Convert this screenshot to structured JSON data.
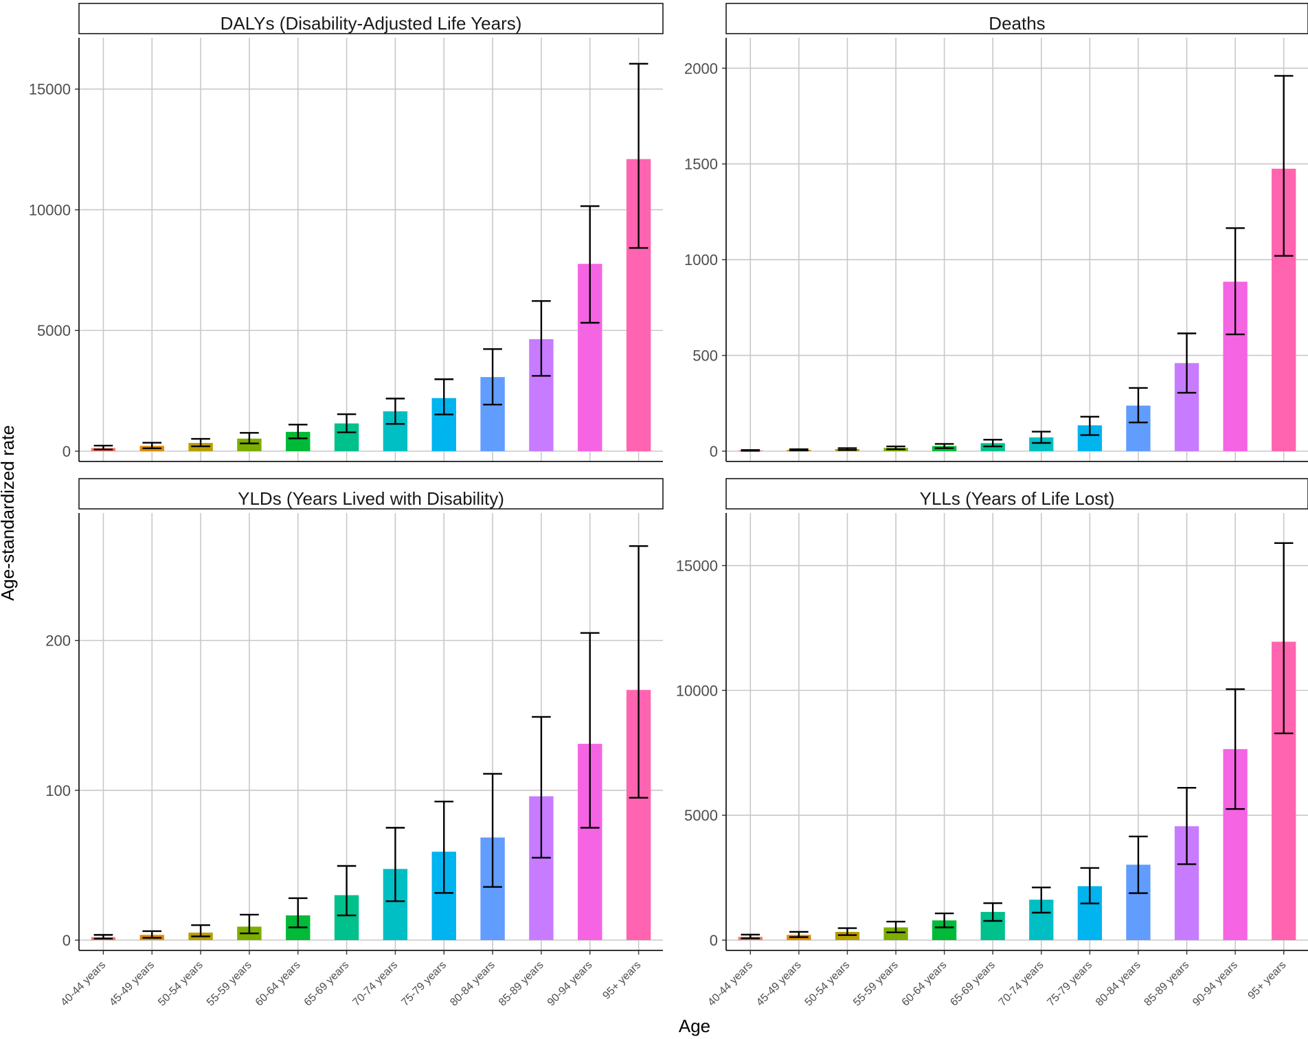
{
  "chart_data": {
    "type": "bar",
    "x_axis_title": "Age",
    "y_axis_title": "Age-standardized rate",
    "categories": [
      "40-44 years",
      "45-49 years",
      "50-54 years",
      "55-59 years",
      "60-64 years",
      "65-69 years",
      "70-74 years",
      "75-79 years",
      "80-84 years",
      "85-89 years",
      "90-94 years",
      "95+ years"
    ],
    "colors": [
      "#F8766D",
      "#DE8C00",
      "#B79F00",
      "#7CAE00",
      "#00BA38",
      "#00C08B",
      "#00BFC4",
      "#00B4F0",
      "#619CFF",
      "#C77CFF",
      "#F564E3",
      "#FF64B0"
    ],
    "panels": [
      {
        "title": "DALYs (Disability-Adjusted Life Years)",
        "ylim": [
          0,
          16500
        ],
        "yticks": [
          0,
          5000,
          10000,
          15000
        ],
        "values": [
          130,
          220,
          340,
          520,
          800,
          1150,
          1650,
          2200,
          3070,
          4640,
          7760,
          12100
        ],
        "lower": [
          70,
          120,
          200,
          320,
          530,
          780,
          1130,
          1520,
          1930,
          3120,
          5320,
          8420
        ],
        "upper": [
          230,
          350,
          510,
          760,
          1100,
          1530,
          2180,
          2980,
          4230,
          6220,
          10150,
          16050
        ]
      },
      {
        "title": "Deaths",
        "ylim": [
          0,
          2080
        ],
        "yticks": [
          0,
          500,
          1000,
          1500,
          2000
        ],
        "values": [
          4,
          7,
          11,
          17,
          27,
          42,
          72,
          135,
          238,
          460,
          885,
          1475
        ],
        "lower": [
          2,
          4,
          6,
          10,
          16,
          25,
          43,
          84,
          150,
          305,
          610,
          1020
        ],
        "upper": [
          6,
          10,
          16,
          25,
          38,
          60,
          102,
          180,
          330,
          615,
          1165,
          1960
        ]
      },
      {
        "title": "YLDs (Years Lived with Disability)",
        "ylim": [
          0,
          275
        ],
        "yticks": [
          0,
          100,
          200
        ],
        "values": [
          2,
          3.5,
          5,
          9,
          16.5,
          30,
          47.5,
          59,
          68.5,
          96,
          131,
          167
        ],
        "lower": [
          1,
          1.5,
          2.5,
          4.5,
          8.5,
          16.5,
          26,
          31.5,
          35.5,
          55,
          75,
          95
        ],
        "upper": [
          3.5,
          6,
          10,
          17,
          28,
          49.5,
          75,
          92.5,
          111,
          149,
          205,
          263
        ]
      },
      {
        "title": "YLLs (Years of Life Lost)",
        "ylim": [
          0,
          16500
        ],
        "yticks": [
          0,
          5000,
          10000,
          15000
        ],
        "values": [
          130,
          210,
          330,
          510,
          790,
          1130,
          1620,
          2160,
          3020,
          4560,
          7650,
          11950
        ],
        "lower": [
          70,
          120,
          200,
          310,
          510,
          770,
          1100,
          1470,
          1880,
          3040,
          5250,
          8280
        ],
        "upper": [
          220,
          330,
          480,
          740,
          1070,
          1480,
          2110,
          2890,
          4150,
          6100,
          10050,
          15900
        ]
      }
    ]
  }
}
